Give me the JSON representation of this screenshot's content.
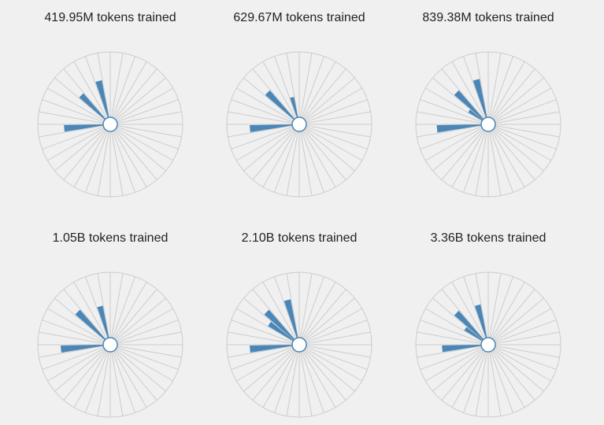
{
  "colors": {
    "background": "#f0f0f0",
    "grid": "#cccccc",
    "bar": "#4a86b8",
    "center_fill": "#ffffff"
  },
  "chart_data": [
    {
      "type": "bar",
      "subtype": "radial",
      "title": "419.95M tokens trained",
      "spokes": 36,
      "r_max": 1,
      "values": [
        0,
        0,
        0,
        0,
        0,
        0,
        0,
        0,
        0,
        0,
        0,
        0,
        0,
        0,
        0,
        0,
        0,
        0.6,
        0,
        0,
        0,
        0,
        0.52,
        0,
        0,
        0.58,
        0,
        0,
        0,
        0,
        0,
        0,
        0,
        0,
        0,
        0
      ]
    },
    {
      "type": "bar",
      "subtype": "radial",
      "title": "629.67M tokens trained",
      "spokes": 36,
      "r_max": 1,
      "values": [
        0,
        0,
        0,
        0,
        0,
        0,
        0,
        0,
        0,
        0,
        0,
        0,
        0,
        0,
        0,
        0,
        0,
        0.65,
        0,
        0,
        0,
        0,
        0.58,
        0,
        0,
        0.32,
        0,
        0,
        0,
        0,
        0,
        0,
        0,
        0,
        0,
        0
      ]
    },
    {
      "type": "bar",
      "subtype": "radial",
      "title": "839.38M tokens trained",
      "spokes": 36,
      "r_max": 1,
      "values": [
        0,
        0,
        0,
        0,
        0,
        0,
        0,
        0,
        0,
        0,
        0,
        0,
        0,
        0,
        0,
        0,
        0,
        0.68,
        0,
        0,
        0,
        0.25,
        0.58,
        0,
        0,
        0.6,
        0,
        0,
        0,
        0,
        0,
        0,
        0,
        0,
        0,
        0
      ]
    },
    {
      "type": "bar",
      "subtype": "radial",
      "title": "1.05B tokens trained",
      "spokes": 36,
      "r_max": 1,
      "values": [
        0,
        0,
        0,
        0,
        0,
        0,
        0,
        0,
        0,
        0,
        0,
        0,
        0,
        0,
        0,
        0,
        0,
        0.65,
        0,
        0,
        0,
        0,
        0.6,
        0,
        0,
        0.5,
        0,
        0,
        0,
        0,
        0,
        0,
        0,
        0,
        0,
        0
      ]
    },
    {
      "type": "bar",
      "subtype": "radial",
      "title": "2.10B tokens trained",
      "spokes": 36,
      "r_max": 1,
      "values": [
        0,
        0,
        0,
        0,
        0,
        0,
        0,
        0,
        0,
        0,
        0,
        0,
        0,
        0,
        0,
        0,
        0,
        0.65,
        0,
        0,
        0,
        0.45,
        0.6,
        0,
        0,
        0.6,
        0,
        0,
        0,
        0,
        0,
        0,
        0,
        0,
        0,
        0
      ]
    },
    {
      "type": "bar",
      "subtype": "radial",
      "title": "3.36B tokens trained",
      "spokes": 36,
      "r_max": 1,
      "values": [
        0,
        0,
        0,
        0,
        0,
        0,
        0,
        0,
        0,
        0,
        0,
        0,
        0,
        0,
        0,
        0,
        0,
        0.6,
        0,
        0,
        0,
        0.32,
        0.58,
        0,
        0,
        0.52,
        0,
        0,
        0,
        0,
        0,
        0,
        0,
        0,
        0,
        0
      ]
    }
  ]
}
